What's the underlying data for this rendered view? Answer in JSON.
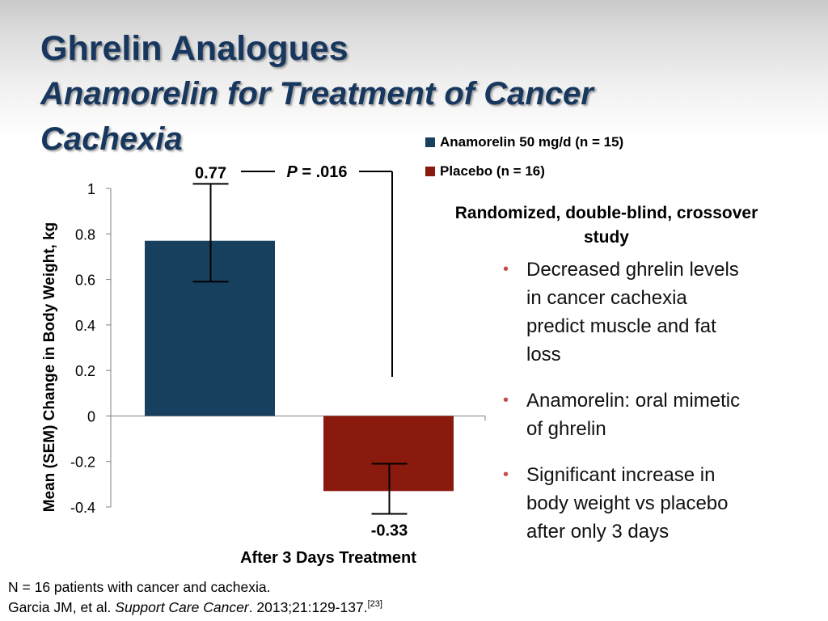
{
  "slide": {
    "title": "Ghrelin Analogues",
    "subtitle": "Anamorelin for Treatment of Cancer Cachexia",
    "study_design": "Randomized, double-blind, crossover study",
    "bullets": [
      "Decreased ghrelin levels in cancer cachexia predict muscle and fat loss",
      "Anamorelin: oral mimetic of ghrelin",
      "Significant increase in body weight vs placebo after only 3 days"
    ],
    "bullet_symbol": "•",
    "footnote_line1": "N = 16 patients with cancer and cachexia.",
    "footnote_citation_authors": "Garcia JM, et al. ",
    "footnote_citation_journal": "Support Care Cancer",
    "footnote_citation_details": ". 2013;21:129-137.",
    "footnote_citation_ref": "[23]"
  },
  "colors": {
    "title": "#17375e",
    "anamorelin": "#17405e",
    "placebo": "#8b1a0e",
    "bullet": "#c0504d"
  },
  "chart_data": {
    "type": "bar",
    "title": "",
    "categories": [
      "After 3 Days Treatment"
    ],
    "xlabel": "After 3 Days Treatment",
    "ylabel": "Mean (SEM) Change in Body Weight, kg",
    "ylim": [
      -0.4,
      1.0
    ],
    "yticks": [
      1,
      0.8,
      0.6,
      0.4,
      0.2,
      0,
      -0.2,
      -0.4
    ],
    "ytick_labels": [
      "1",
      "0.8",
      "0.6",
      "0.4",
      "0.2",
      "0",
      "-0.2",
      "-0.4"
    ],
    "grid": false,
    "legend_position": "top-right",
    "series": [
      {
        "name": "Anamorelin 50 mg/d (n = 15)",
        "values": [
          0.77
        ],
        "error_low": 0.59,
        "error_high": 1.02,
        "label": "0.77",
        "color": "#17405e"
      },
      {
        "name": "Placebo (n = 16)",
        "values": [
          -0.33
        ],
        "error_low": -0.43,
        "error_high": -0.21,
        "label": "-0.33",
        "color": "#8b1a0e"
      }
    ],
    "annotation": {
      "p_label": "P",
      "p_value": " = .016"
    }
  }
}
